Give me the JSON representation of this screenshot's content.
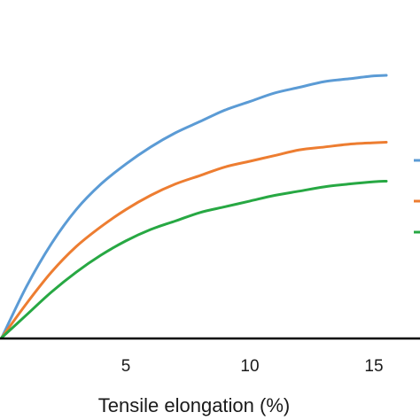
{
  "chart_data": {
    "type": "line",
    "title": "",
    "xlabel": "Tensile elongation (%)",
    "ylabel": "",
    "xlim": [
      0,
      15.5
    ],
    "ylim": [
      0,
      1
    ],
    "grid": false,
    "legend": "right (cropped; only colored line markers visible, no text)",
    "x_ticks": [
      "5",
      "10",
      "15"
    ],
    "x_tick_values": [
      5,
      10,
      15
    ],
    "x": [
      0,
      1,
      2,
      3,
      4,
      5,
      6,
      7,
      8,
      9,
      10,
      11,
      12,
      13,
      14,
      15,
      15.5
    ],
    "series": [
      {
        "color": "#5b9bd5",
        "values": [
          0,
          0.18,
          0.33,
          0.45,
          0.54,
          0.61,
          0.67,
          0.72,
          0.76,
          0.8,
          0.83,
          0.86,
          0.88,
          0.9,
          0.91,
          0.92,
          0.922
        ]
      },
      {
        "color": "#ed7d31",
        "values": [
          0,
          0.12,
          0.23,
          0.32,
          0.39,
          0.45,
          0.5,
          0.54,
          0.57,
          0.6,
          0.62,
          0.64,
          0.66,
          0.67,
          0.68,
          0.685,
          0.687
        ]
      },
      {
        "color": "#27a843",
        "values": [
          0,
          0.08,
          0.16,
          0.23,
          0.29,
          0.34,
          0.38,
          0.41,
          0.44,
          0.46,
          0.48,
          0.5,
          0.515,
          0.53,
          0.54,
          0.548,
          0.55
        ]
      }
    ]
  }
}
